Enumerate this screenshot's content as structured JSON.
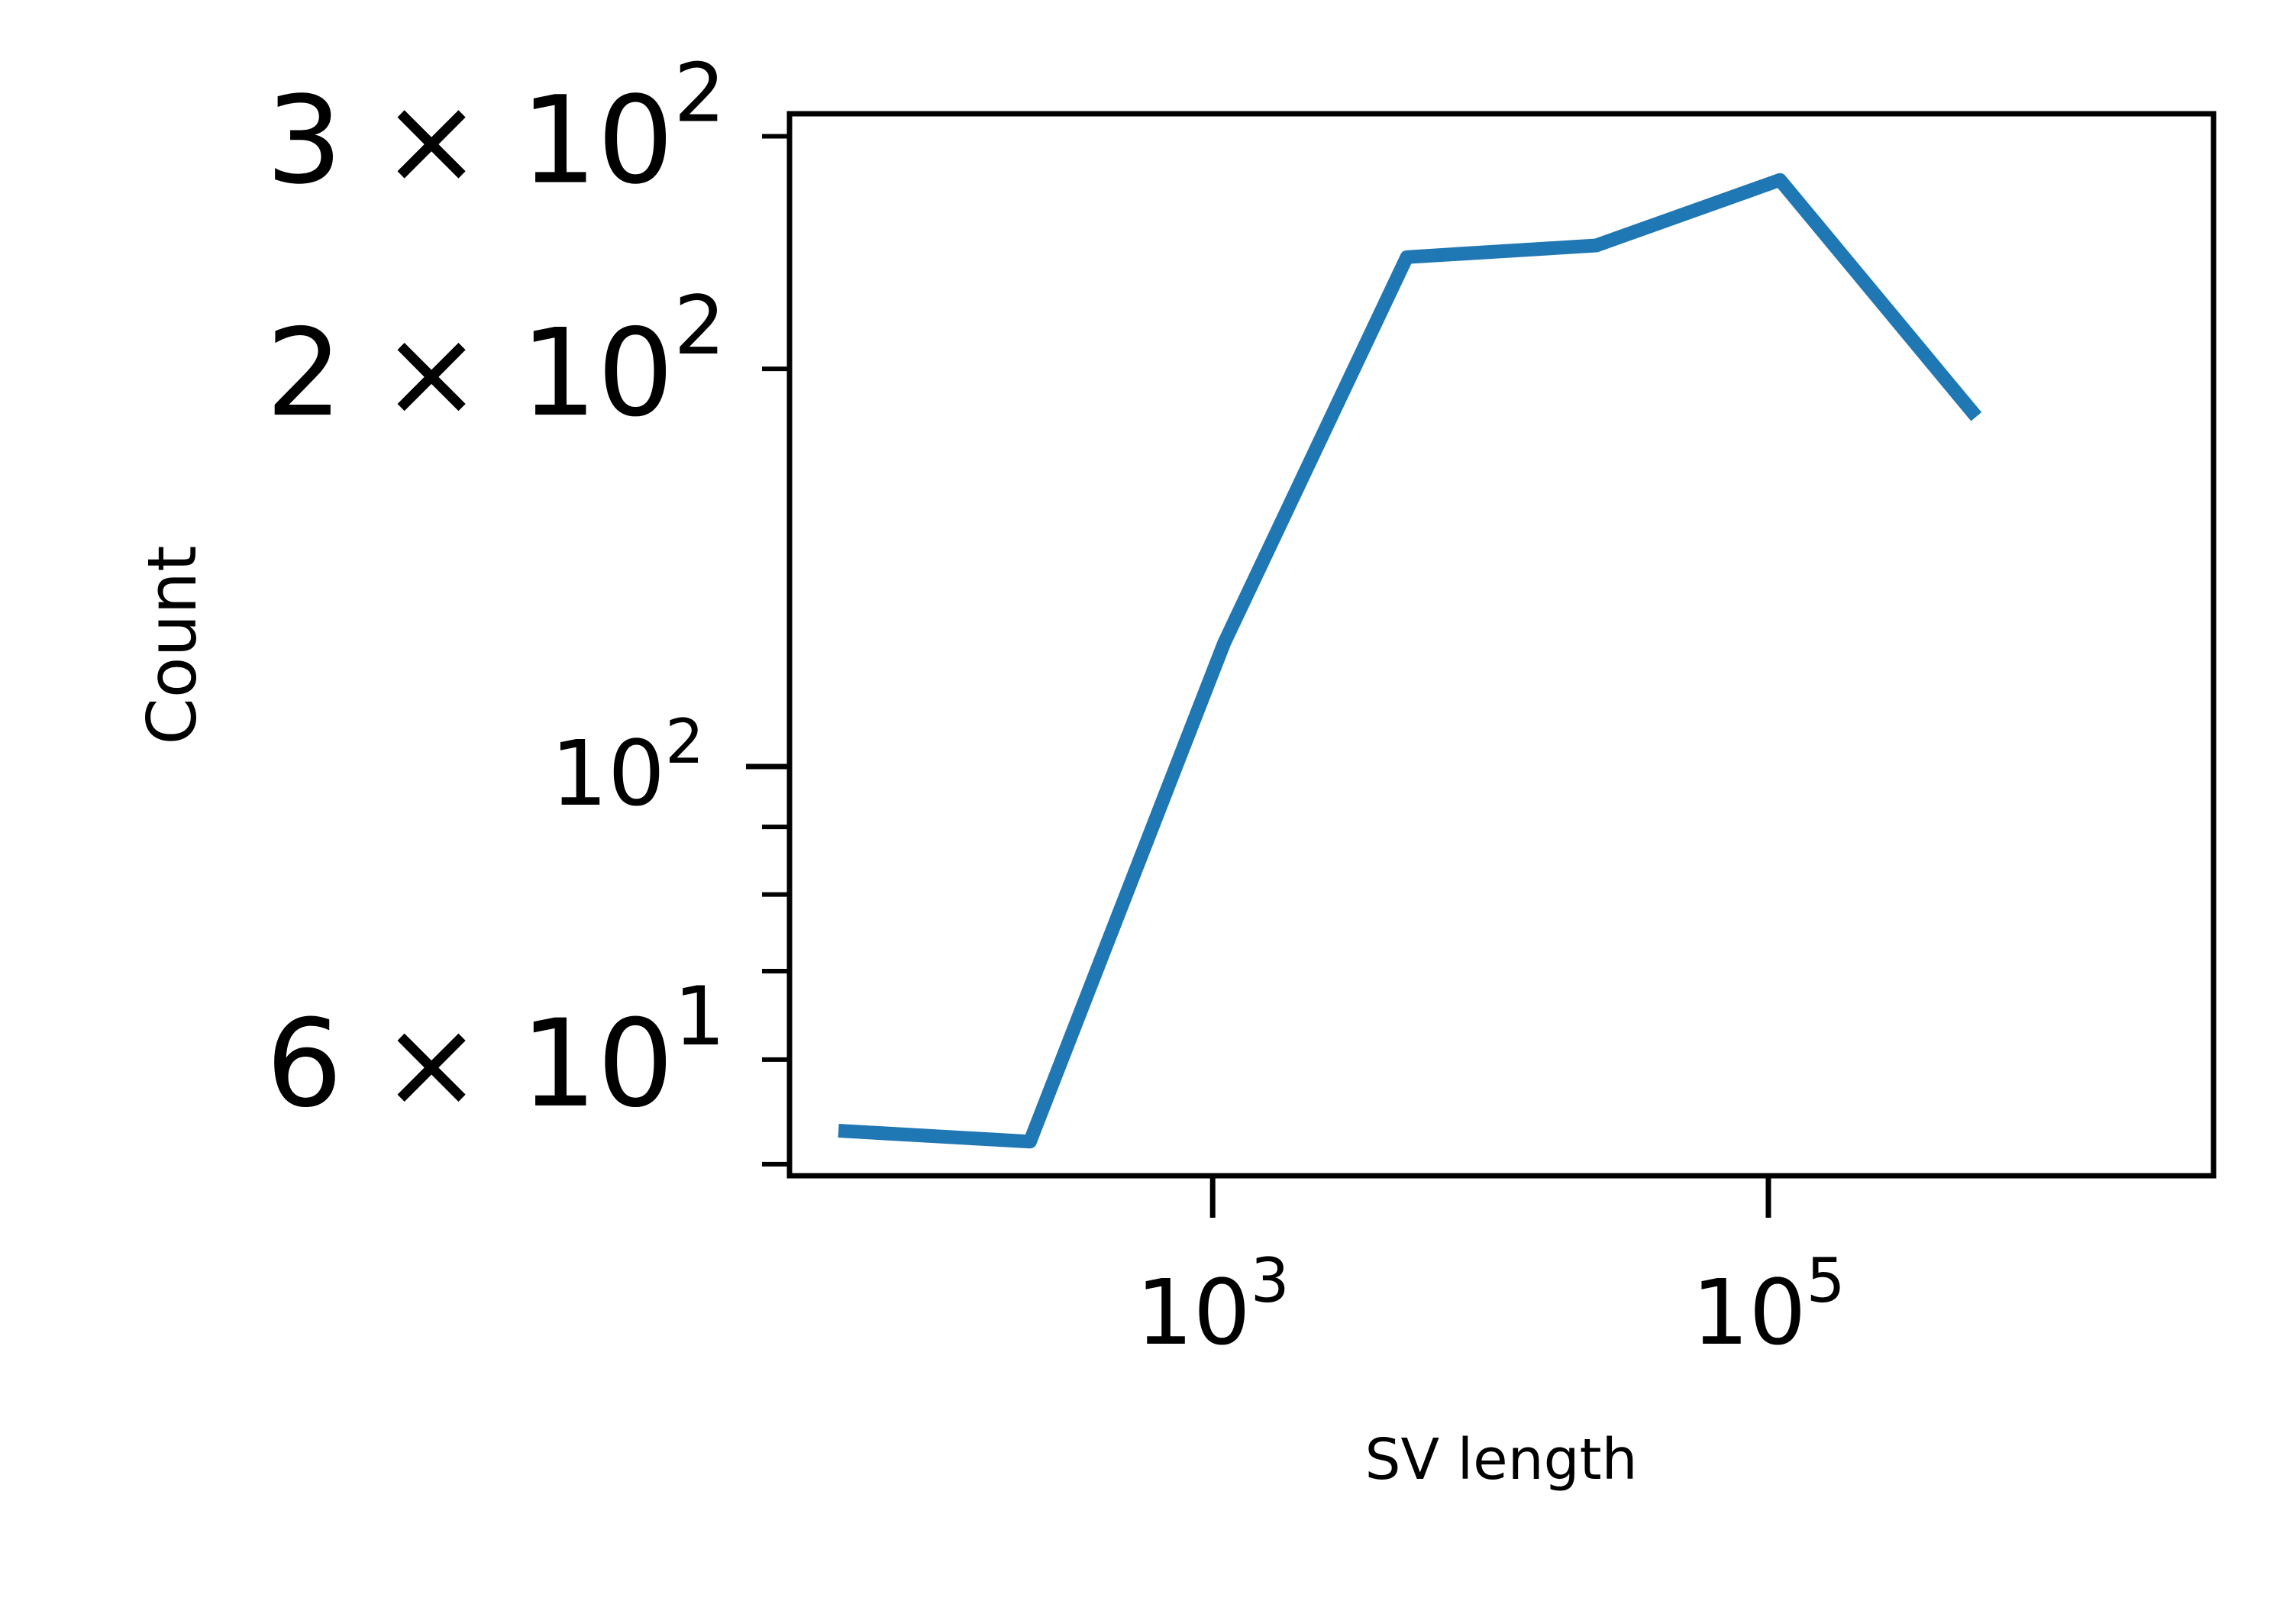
{
  "chart_data": {
    "type": "line",
    "xlabel": "SV length",
    "ylabel": "Count",
    "xscale": "log",
    "yscale": "log",
    "xlim": [
      30,
      4000000
    ],
    "ylim": [
      49,
      312
    ],
    "grid": false,
    "legend": "none",
    "x_ticks": [
      {
        "value": 1000,
        "base": "10",
        "exp": "3"
      },
      {
        "value": 100000,
        "base": "10",
        "exp": "5"
      }
    ],
    "y_ticks_major": [
      {
        "value": 100,
        "mantissa": "",
        "base": "10",
        "exp": "2"
      }
    ],
    "y_ticks_minor": [
      {
        "value": 50,
        "labeled": false
      },
      {
        "value": 60,
        "labeled": true,
        "mantissa": "6",
        "base": "10",
        "exp": "1"
      },
      {
        "value": 70,
        "labeled": false
      },
      {
        "value": 80,
        "labeled": false
      },
      {
        "value": 90,
        "labeled": false
      },
      {
        "value": 200,
        "labeled": true,
        "mantissa": "2",
        "base": "10",
        "exp": "2"
      },
      {
        "value": 300,
        "labeled": true,
        "mantissa": "3",
        "base": "10",
        "exp": "2"
      }
    ],
    "series": [
      {
        "color": "#1f77b4",
        "x": [
          45,
          220,
          1100,
          5000,
          24000,
          110000,
          560000
        ],
        "y": [
          53,
          52,
          124,
          243,
          248,
          278,
          184
        ]
      }
    ]
  }
}
